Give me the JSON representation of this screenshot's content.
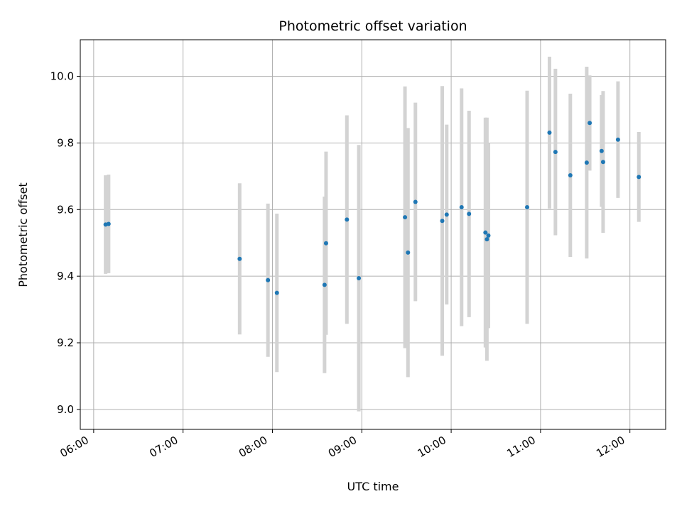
{
  "chart_data": {
    "type": "scatter",
    "title": "Photometric offset variation",
    "xlabel": "UTC time",
    "ylabel": "Photometric offset",
    "x_unit": "UTC time (HH:MM)",
    "xlim": [
      "05:51",
      "12:24"
    ],
    "ylim": [
      8.94,
      10.11
    ],
    "x_ticks": [
      "06:00",
      "07:00",
      "08:00",
      "09:00",
      "10:00",
      "11:00",
      "12:00"
    ],
    "y_ticks": [
      9.0,
      9.2,
      9.4,
      9.6,
      9.8,
      10.0
    ],
    "y_tick_labels": [
      "9.0",
      "9.2",
      "9.4",
      "9.6",
      "9.8",
      "10.0"
    ],
    "grid": true,
    "colors": {
      "points": "#1f77b4",
      "error_bars": "#d3d3d3",
      "grid": "#b0b0b0"
    },
    "points": [
      {
        "x": "06:08",
        "y": 9.555,
        "err": 0.148
      },
      {
        "x": "06:10",
        "y": 9.557,
        "err": 0.148
      },
      {
        "x": "07:38",
        "y": 9.452,
        "err": 0.227
      },
      {
        "x": "07:57",
        "y": 9.388,
        "err": 0.23
      },
      {
        "x": "08:03",
        "y": 9.35,
        "err": 0.238
      },
      {
        "x": "08:35",
        "y": 9.374,
        "err": 0.265
      },
      {
        "x": "08:36",
        "y": 9.499,
        "err": 0.275
      },
      {
        "x": "08:50",
        "y": 9.57,
        "err": 0.313
      },
      {
        "x": "08:58",
        "y": 9.394,
        "err": 0.4
      },
      {
        "x": "09:29",
        "y": 9.577,
        "err": 0.393
      },
      {
        "x": "09:31",
        "y": 9.471,
        "err": 0.374
      },
      {
        "x": "09:36",
        "y": 9.623,
        "err": 0.298
      },
      {
        "x": "09:54",
        "y": 9.566,
        "err": 0.405
      },
      {
        "x": "09:57",
        "y": 9.585,
        "err": 0.27
      },
      {
        "x": "10:07",
        "y": 9.607,
        "err": 0.357
      },
      {
        "x": "10:12",
        "y": 9.587,
        "err": 0.31
      },
      {
        "x": "10:23",
        "y": 9.531,
        "err": 0.345
      },
      {
        "x": "10:24",
        "y": 9.511,
        "err": 0.365
      },
      {
        "x": "10:25",
        "y": 9.522,
        "err": 0.278
      },
      {
        "x": "10:51",
        "y": 9.607,
        "err": 0.35
      },
      {
        "x": "11:06",
        "y": 9.831,
        "err": 0.228
      },
      {
        "x": "11:10",
        "y": 9.773,
        "err": 0.25
      },
      {
        "x": "11:20",
        "y": 9.703,
        "err": 0.245
      },
      {
        "x": "11:31",
        "y": 9.741,
        "err": 0.288
      },
      {
        "x": "11:33",
        "y": 9.86,
        "err": 0.143
      },
      {
        "x": "11:41",
        "y": 9.776,
        "err": 0.168
      },
      {
        "x": "11:42",
        "y": 9.743,
        "err": 0.213
      },
      {
        "x": "11:52",
        "y": 9.81,
        "err": 0.175
      },
      {
        "x": "12:06",
        "y": 9.698,
        "err": 0.135
      }
    ]
  }
}
